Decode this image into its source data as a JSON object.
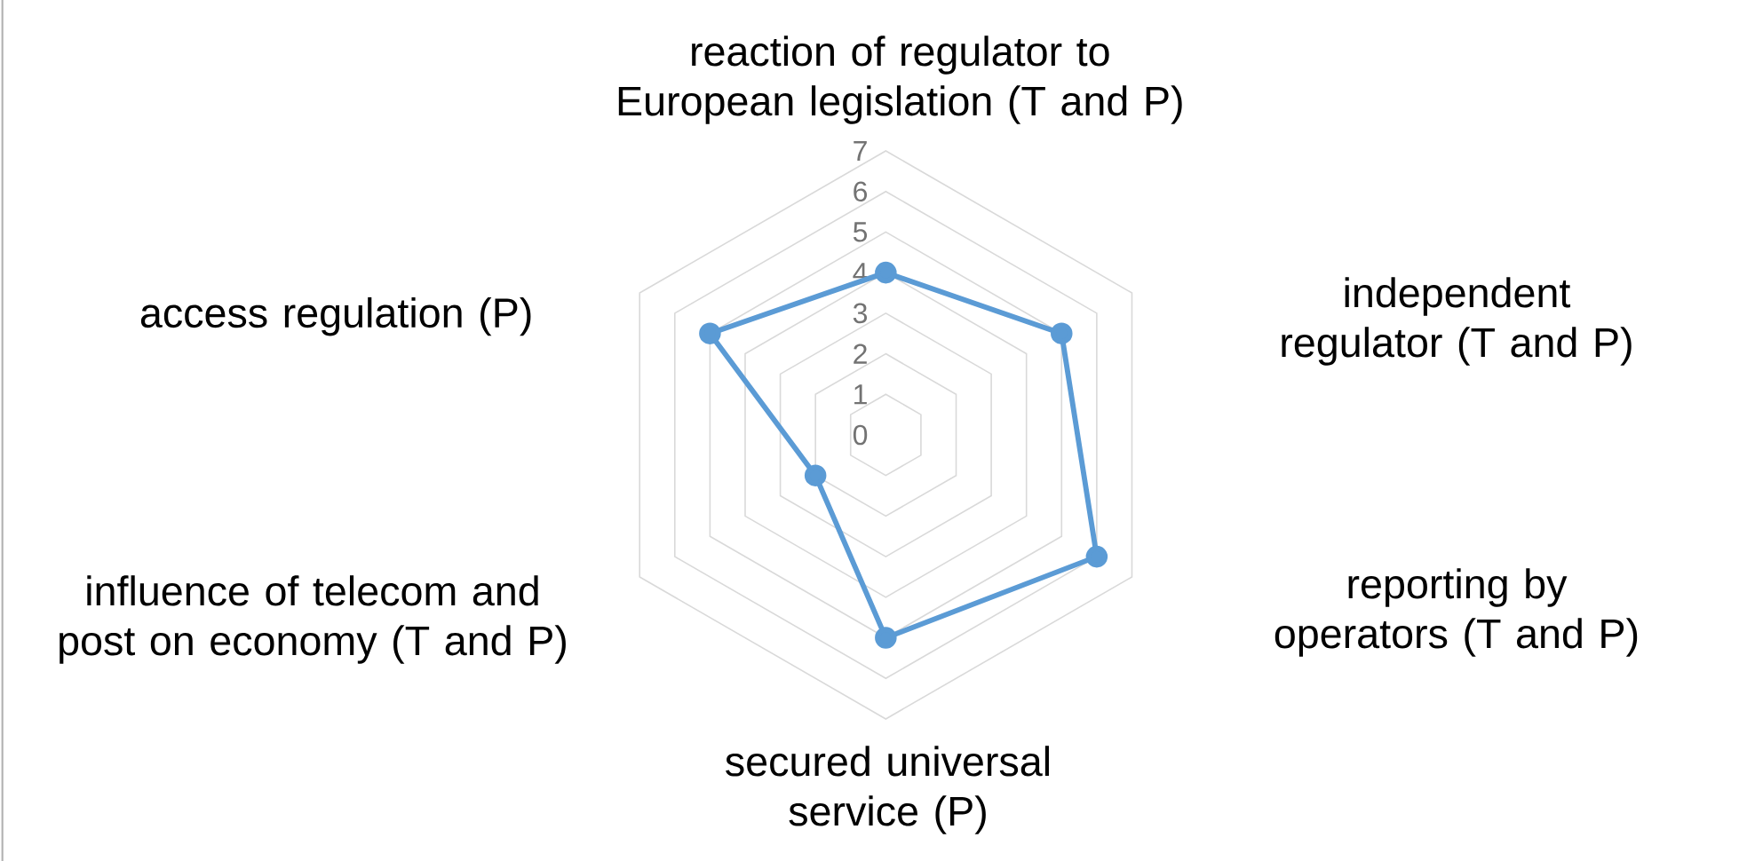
{
  "chart_data": {
    "type": "radar",
    "categories": [
      "reaction of regulator to European legislation (T and P)",
      "independent regulator (T and P)",
      "reporting by operators (T and P)",
      "secured universal service (P)",
      "influence of telecom and post on economy (T and P)",
      "access regulation (P)"
    ],
    "series": [
      {
        "color": "#5b9bd5",
        "values": [
          4,
          5,
          6,
          5,
          2,
          5
        ]
      }
    ],
    "ylim": [
      0,
      7
    ],
    "yticks": [
      0,
      1,
      2,
      3,
      4,
      5,
      6,
      7
    ],
    "grid": true,
    "marker": "circle"
  }
}
